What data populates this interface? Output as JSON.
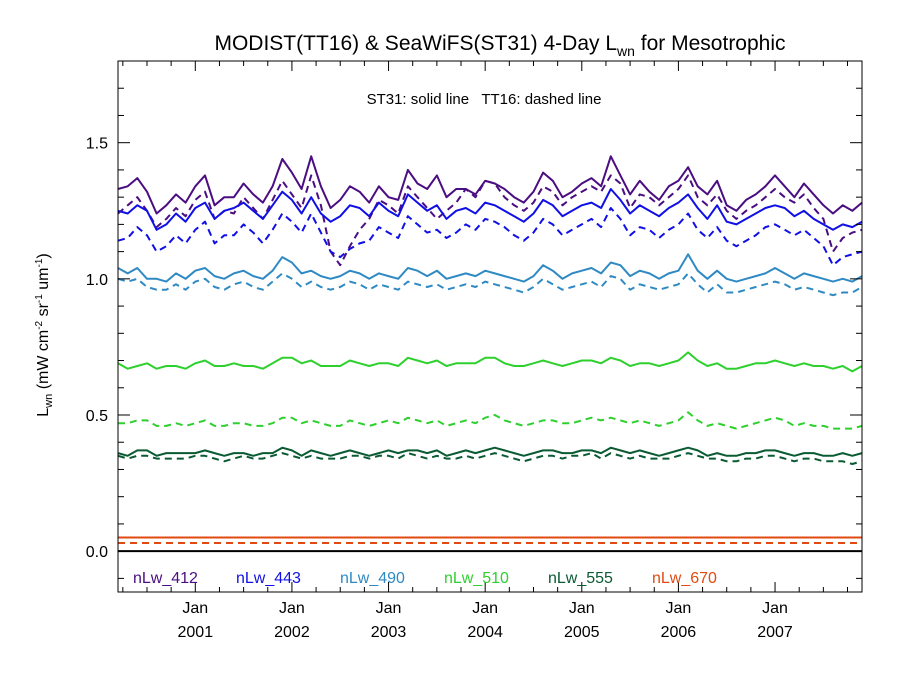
{
  "chart_data": {
    "type": "line",
    "title_main": "MODIST(TT16) & SeaWiFS(ST31) 4-Day L",
    "title_sub": "wn",
    "title_tail": " for Mesotrophic",
    "annotation": "ST31: solid line   TT16: dashed line",
    "ylabel": {
      "base": "L",
      "base_sub": "wn",
      "units_open": " (mW cm",
      "exp1": "-2",
      "mid1": " sr",
      "exp2": "-1",
      "mid2": " um",
      "exp3": "-1",
      "units_close": ")"
    },
    "ylim": [
      -0.15,
      1.8
    ],
    "yticks": [
      {
        "value": 0.0,
        "label": "0.0"
      },
      {
        "value": 0.5,
        "label": "0.5"
      },
      {
        "value": 1.0,
        "label": "1.0"
      },
      {
        "value": 1.5,
        "label": "1.5"
      }
    ],
    "xlim": [
      2000.2,
      2007.9
    ],
    "xticks": [
      {
        "value": 2001.0,
        "month": "Jan",
        "year": "2001"
      },
      {
        "value": 2002.0,
        "month": "Jan",
        "year": "2002"
      },
      {
        "value": 2003.0,
        "month": "Jan",
        "year": "2003"
      },
      {
        "value": 2004.0,
        "month": "Jan",
        "year": "2004"
      },
      {
        "value": 2005.0,
        "month": "Jan",
        "year": "2005"
      },
      {
        "value": 2006.0,
        "month": "Jan",
        "year": "2006"
      },
      {
        "value": 2007.0,
        "month": "Jan",
        "year": "2007"
      }
    ],
    "x": [
      2000.2,
      2000.3,
      2000.4,
      2000.5,
      2000.6,
      2000.7,
      2000.8,
      2000.9,
      2001.0,
      2001.1,
      2001.2,
      2001.3,
      2001.4,
      2001.5,
      2001.6,
      2001.7,
      2001.8,
      2001.9,
      2002.0,
      2002.1,
      2002.2,
      2002.3,
      2002.4,
      2002.5,
      2002.6,
      2002.7,
      2002.8,
      2002.9,
      2003.0,
      2003.1,
      2003.2,
      2003.3,
      2003.4,
      2003.5,
      2003.6,
      2003.7,
      2003.8,
      2003.9,
      2004.0,
      2004.1,
      2004.2,
      2004.3,
      2004.4,
      2004.5,
      2004.6,
      2004.7,
      2004.8,
      2004.9,
      2005.0,
      2005.1,
      2005.2,
      2005.3,
      2005.4,
      2005.5,
      2005.6,
      2005.7,
      2005.8,
      2005.9,
      2006.0,
      2006.1,
      2006.2,
      2006.3,
      2006.4,
      2006.5,
      2006.6,
      2006.7,
      2006.8,
      2006.9,
      2007.0,
      2007.1,
      2007.2,
      2007.3,
      2007.4,
      2007.5,
      2007.6,
      2007.7,
      2007.8,
      2007.9
    ],
    "series": [
      {
        "name": "nLw_412",
        "style": "solid",
        "color": "#4b0d82",
        "values": [
          1.33,
          1.34,
          1.37,
          1.32,
          1.24,
          1.27,
          1.31,
          1.28,
          1.34,
          1.38,
          1.27,
          1.3,
          1.3,
          1.35,
          1.31,
          1.28,
          1.34,
          1.44,
          1.39,
          1.33,
          1.45,
          1.34,
          1.26,
          1.29,
          1.34,
          1.32,
          1.28,
          1.34,
          1.3,
          1.29,
          1.4,
          1.35,
          1.33,
          1.38,
          1.3,
          1.33,
          1.33,
          1.31,
          1.36,
          1.35,
          1.33,
          1.3,
          1.28,
          1.32,
          1.39,
          1.36,
          1.3,
          1.32,
          1.35,
          1.37,
          1.34,
          1.45,
          1.38,
          1.31,
          1.36,
          1.32,
          1.29,
          1.34,
          1.36,
          1.41,
          1.34,
          1.31,
          1.36,
          1.27,
          1.25,
          1.29,
          1.31,
          1.34,
          1.38,
          1.34,
          1.3,
          1.35,
          1.31,
          1.27,
          1.24,
          1.27,
          1.25,
          1.28
        ]
      },
      {
        "name": "nLw_412",
        "style": "dashed",
        "color": "#4b0d82",
        "values": [
          1.24,
          1.27,
          1.3,
          1.25,
          1.19,
          1.22,
          1.26,
          1.23,
          1.29,
          1.32,
          1.22,
          1.25,
          1.24,
          1.3,
          1.26,
          1.22,
          1.29,
          1.36,
          1.31,
          1.26,
          1.38,
          1.27,
          1.1,
          1.05,
          1.12,
          1.18,
          1.22,
          1.29,
          1.27,
          1.24,
          1.34,
          1.3,
          1.26,
          1.22,
          1.25,
          1.28,
          1.33,
          1.3,
          1.36,
          1.35,
          1.3,
          1.27,
          1.25,
          1.28,
          1.34,
          1.32,
          1.27,
          1.3,
          1.32,
          1.34,
          1.32,
          1.38,
          1.35,
          1.26,
          1.31,
          1.3,
          1.27,
          1.3,
          1.33,
          1.38,
          1.3,
          1.27,
          1.31,
          1.25,
          1.22,
          1.25,
          1.27,
          1.3,
          1.33,
          1.3,
          1.28,
          1.31,
          1.26,
          1.22,
          1.1,
          1.15,
          1.17,
          1.18
        ]
      },
      {
        "name": "nLw_443",
        "style": "solid",
        "color": "#1010e6",
        "values": [
          1.25,
          1.24,
          1.27,
          1.25,
          1.18,
          1.2,
          1.24,
          1.21,
          1.26,
          1.28,
          1.22,
          1.25,
          1.26,
          1.28,
          1.25,
          1.22,
          1.27,
          1.32,
          1.29,
          1.24,
          1.3,
          1.24,
          1.21,
          1.23,
          1.27,
          1.26,
          1.23,
          1.28,
          1.25,
          1.23,
          1.31,
          1.28,
          1.25,
          1.27,
          1.22,
          1.25,
          1.26,
          1.24,
          1.28,
          1.27,
          1.25,
          1.23,
          1.21,
          1.24,
          1.29,
          1.27,
          1.23,
          1.25,
          1.27,
          1.28,
          1.26,
          1.33,
          1.29,
          1.24,
          1.27,
          1.25,
          1.23,
          1.26,
          1.28,
          1.31,
          1.26,
          1.22,
          1.27,
          1.21,
          1.2,
          1.22,
          1.24,
          1.26,
          1.27,
          1.26,
          1.23,
          1.25,
          1.22,
          1.2,
          1.18,
          1.2,
          1.19,
          1.21
        ]
      },
      {
        "name": "nLw_443",
        "style": "dashed",
        "color": "#1010e6",
        "values": [
          1.14,
          1.15,
          1.19,
          1.16,
          1.1,
          1.12,
          1.16,
          1.13,
          1.18,
          1.21,
          1.13,
          1.16,
          1.16,
          1.2,
          1.17,
          1.13,
          1.18,
          1.24,
          1.21,
          1.17,
          1.24,
          1.17,
          1.1,
          1.08,
          1.11,
          1.13,
          1.14,
          1.19,
          1.17,
          1.15,
          1.23,
          1.2,
          1.17,
          1.18,
          1.15,
          1.17,
          1.2,
          1.18,
          1.22,
          1.21,
          1.19,
          1.16,
          1.14,
          1.17,
          1.22,
          1.2,
          1.16,
          1.18,
          1.2,
          1.22,
          1.19,
          1.26,
          1.22,
          1.16,
          1.19,
          1.18,
          1.15,
          1.18,
          1.2,
          1.24,
          1.18,
          1.15,
          1.19,
          1.14,
          1.12,
          1.14,
          1.16,
          1.19,
          1.2,
          1.18,
          1.16,
          1.18,
          1.15,
          1.12,
          1.05,
          1.08,
          1.09,
          1.1
        ]
      },
      {
        "name": "nLw_490",
        "style": "solid",
        "color": "#2f8ac4",
        "values": [
          1.04,
          1.02,
          1.04,
          1.0,
          1.0,
          0.99,
          1.02,
          1.0,
          1.03,
          1.04,
          1.01,
          1.0,
          1.02,
          1.03,
          1.01,
          1.0,
          1.03,
          1.08,
          1.06,
          1.02,
          1.03,
          1.01,
          1.0,
          1.01,
          1.03,
          1.02,
          1.0,
          1.02,
          1.01,
          1.0,
          1.04,
          1.03,
          1.01,
          1.03,
          1.0,
          1.01,
          1.02,
          1.01,
          1.03,
          1.02,
          1.01,
          1.0,
          0.99,
          1.01,
          1.05,
          1.03,
          1.0,
          1.02,
          1.03,
          1.04,
          1.02,
          1.06,
          1.05,
          1.01,
          1.03,
          1.02,
          1.0,
          1.02,
          1.03,
          1.09,
          1.03,
          1.0,
          1.03,
          1.0,
          0.99,
          1.0,
          1.01,
          1.02,
          1.04,
          1.02,
          1.0,
          1.02,
          1.01,
          1.0,
          0.99,
          1.0,
          0.99,
          1.01
        ]
      },
      {
        "name": "nLw_490",
        "style": "dashed",
        "color": "#2f8ac4",
        "values": [
          1.0,
          0.99,
          1.0,
          0.97,
          0.96,
          0.96,
          0.98,
          0.96,
          0.99,
          1.0,
          0.97,
          0.96,
          0.98,
          0.99,
          0.97,
          0.96,
          0.99,
          1.02,
          1.0,
          0.97,
          0.99,
          0.97,
          0.96,
          0.97,
          0.99,
          0.98,
          0.96,
          0.98,
          0.97,
          0.96,
          0.99,
          0.98,
          0.97,
          0.98,
          0.96,
          0.97,
          0.98,
          0.97,
          0.99,
          0.98,
          0.97,
          0.96,
          0.95,
          0.97,
          1.0,
          0.98,
          0.96,
          0.97,
          0.98,
          0.99,
          0.97,
          1.01,
          1.0,
          0.96,
          0.98,
          0.97,
          0.96,
          0.97,
          0.98,
          1.02,
          0.98,
          0.95,
          0.98,
          0.95,
          0.95,
          0.96,
          0.97,
          0.98,
          0.99,
          0.98,
          0.96,
          0.97,
          0.96,
          0.95,
          0.94,
          0.95,
          0.95,
          0.97
        ]
      },
      {
        "name": "nLw_510",
        "style": "solid",
        "color": "#2ed02e",
        "values": [
          0.69,
          0.67,
          0.68,
          0.69,
          0.67,
          0.68,
          0.68,
          0.67,
          0.69,
          0.7,
          0.68,
          0.68,
          0.69,
          0.68,
          0.68,
          0.67,
          0.69,
          0.71,
          0.71,
          0.69,
          0.7,
          0.68,
          0.68,
          0.68,
          0.7,
          0.69,
          0.68,
          0.69,
          0.69,
          0.68,
          0.71,
          0.7,
          0.69,
          0.7,
          0.68,
          0.69,
          0.69,
          0.69,
          0.71,
          0.71,
          0.69,
          0.68,
          0.68,
          0.69,
          0.7,
          0.69,
          0.68,
          0.69,
          0.7,
          0.7,
          0.69,
          0.71,
          0.7,
          0.68,
          0.69,
          0.69,
          0.68,
          0.69,
          0.7,
          0.73,
          0.7,
          0.68,
          0.69,
          0.67,
          0.67,
          0.68,
          0.69,
          0.69,
          0.7,
          0.69,
          0.68,
          0.69,
          0.68,
          0.68,
          0.67,
          0.68,
          0.66,
          0.68
        ]
      },
      {
        "name": "nLw_510",
        "style": "dashed",
        "color": "#2ed02e",
        "values": [
          0.47,
          0.47,
          0.48,
          0.48,
          0.46,
          0.46,
          0.47,
          0.46,
          0.47,
          0.48,
          0.46,
          0.46,
          0.47,
          0.47,
          0.46,
          0.46,
          0.47,
          0.49,
          0.49,
          0.47,
          0.48,
          0.47,
          0.46,
          0.46,
          0.48,
          0.47,
          0.46,
          0.47,
          0.48,
          0.47,
          0.49,
          0.48,
          0.47,
          0.48,
          0.46,
          0.47,
          0.48,
          0.47,
          0.49,
          0.5,
          0.48,
          0.47,
          0.46,
          0.47,
          0.48,
          0.48,
          0.47,
          0.47,
          0.48,
          0.49,
          0.48,
          0.49,
          0.48,
          0.47,
          0.48,
          0.47,
          0.46,
          0.47,
          0.48,
          0.51,
          0.48,
          0.46,
          0.47,
          0.46,
          0.45,
          0.46,
          0.47,
          0.48,
          0.49,
          0.48,
          0.46,
          0.47,
          0.46,
          0.46,
          0.45,
          0.45,
          0.45,
          0.46
        ]
      },
      {
        "name": "nLw_555",
        "style": "solid",
        "color": "#0a5a32",
        "values": [
          0.36,
          0.35,
          0.37,
          0.37,
          0.35,
          0.36,
          0.36,
          0.36,
          0.36,
          0.37,
          0.36,
          0.35,
          0.36,
          0.36,
          0.35,
          0.36,
          0.36,
          0.38,
          0.37,
          0.35,
          0.37,
          0.36,
          0.35,
          0.36,
          0.37,
          0.36,
          0.35,
          0.36,
          0.37,
          0.36,
          0.37,
          0.37,
          0.36,
          0.37,
          0.35,
          0.36,
          0.37,
          0.36,
          0.37,
          0.38,
          0.37,
          0.36,
          0.35,
          0.36,
          0.37,
          0.37,
          0.36,
          0.36,
          0.37,
          0.37,
          0.36,
          0.38,
          0.37,
          0.36,
          0.37,
          0.36,
          0.35,
          0.36,
          0.37,
          0.38,
          0.37,
          0.35,
          0.36,
          0.35,
          0.35,
          0.36,
          0.36,
          0.37,
          0.37,
          0.36,
          0.35,
          0.36,
          0.36,
          0.35,
          0.35,
          0.36,
          0.35,
          0.36
        ]
      },
      {
        "name": "nLw_555",
        "style": "dashed",
        "color": "#0a5a32",
        "values": [
          0.35,
          0.34,
          0.35,
          0.35,
          0.34,
          0.34,
          0.34,
          0.34,
          0.35,
          0.35,
          0.34,
          0.33,
          0.34,
          0.35,
          0.34,
          0.34,
          0.35,
          0.36,
          0.35,
          0.34,
          0.35,
          0.34,
          0.34,
          0.34,
          0.35,
          0.35,
          0.34,
          0.35,
          0.35,
          0.34,
          0.36,
          0.35,
          0.34,
          0.35,
          0.34,
          0.34,
          0.35,
          0.34,
          0.35,
          0.36,
          0.35,
          0.34,
          0.33,
          0.34,
          0.35,
          0.35,
          0.34,
          0.35,
          0.35,
          0.36,
          0.34,
          0.36,
          0.35,
          0.34,
          0.35,
          0.34,
          0.34,
          0.34,
          0.35,
          0.36,
          0.35,
          0.34,
          0.34,
          0.33,
          0.33,
          0.34,
          0.34,
          0.35,
          0.35,
          0.34,
          0.33,
          0.34,
          0.34,
          0.33,
          0.33,
          0.33,
          0.32,
          0.33
        ]
      },
      {
        "name": "nLw_670",
        "style": "solid",
        "color": "#e04a10",
        "values": [
          0.05,
          0.05,
          0.05,
          0.05,
          0.05,
          0.05,
          0.05,
          0.05,
          0.05,
          0.05,
          0.05,
          0.05,
          0.05,
          0.05,
          0.05,
          0.05,
          0.05,
          0.05,
          0.05,
          0.05,
          0.05,
          0.05,
          0.05,
          0.05,
          0.05,
          0.05,
          0.05,
          0.05,
          0.05,
          0.05,
          0.05,
          0.05,
          0.05,
          0.05,
          0.05,
          0.05,
          0.05,
          0.05,
          0.05,
          0.05,
          0.05,
          0.05,
          0.05,
          0.05,
          0.05,
          0.05,
          0.05,
          0.05,
          0.05,
          0.05,
          0.05,
          0.05,
          0.05,
          0.05,
          0.05,
          0.05,
          0.05,
          0.05,
          0.05,
          0.05,
          0.05,
          0.05,
          0.05,
          0.05,
          0.05,
          0.05,
          0.05,
          0.05,
          0.05,
          0.05,
          0.05,
          0.05,
          0.05,
          0.05,
          0.05,
          0.05,
          0.05,
          0.05
        ]
      },
      {
        "name": "nLw_670",
        "style": "dashed",
        "color": "#e04a10",
        "values": [
          0.03,
          0.03,
          0.03,
          0.03,
          0.03,
          0.03,
          0.03,
          0.03,
          0.03,
          0.03,
          0.03,
          0.03,
          0.03,
          0.03,
          0.03,
          0.03,
          0.03,
          0.03,
          0.03,
          0.03,
          0.03,
          0.03,
          0.03,
          0.03,
          0.03,
          0.03,
          0.03,
          0.03,
          0.03,
          0.03,
          0.03,
          0.03,
          0.03,
          0.03,
          0.03,
          0.03,
          0.03,
          0.03,
          0.03,
          0.03,
          0.03,
          0.03,
          0.03,
          0.03,
          0.03,
          0.03,
          0.03,
          0.03,
          0.03,
          0.03,
          0.03,
          0.03,
          0.03,
          0.03,
          0.03,
          0.03,
          0.03,
          0.03,
          0.03,
          0.03,
          0.03,
          0.03,
          0.03,
          0.03,
          0.03,
          0.03,
          0.03,
          0.03,
          0.03,
          0.03,
          0.03,
          0.03,
          0.03,
          0.03,
          0.03,
          0.03,
          0.03,
          0.03
        ]
      }
    ],
    "zero_line": 0.0,
    "legend": [
      {
        "label": "nLw_412",
        "color": "#4b0d82"
      },
      {
        "label": "nLw_443",
        "color": "#1010e6"
      },
      {
        "label": "nLw_490",
        "color": "#2f8ac4"
      },
      {
        "label": "nLw_510",
        "color": "#2ed02e"
      },
      {
        "label": "nLw_555",
        "color": "#0a5a32"
      },
      {
        "label": "nLw_670",
        "color": "#e04a10"
      }
    ],
    "legend_placement": "bottom inside plot",
    "grid": false
  }
}
